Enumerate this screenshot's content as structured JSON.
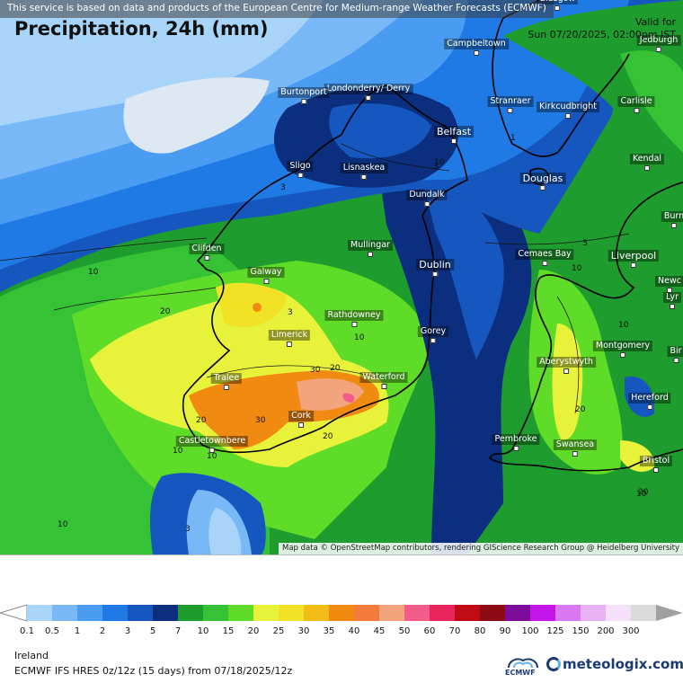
{
  "attribution_top": "This service is based on data and products of the European Centre for Medium-range Weather Forecasts (ECMWF)",
  "attribution_map": "Map data © OpenStreetMap contributors, rendering GIScience Research Group @ Heidelberg University",
  "title": "Precipitation, 24h (mm)",
  "valid_label": "Valid for",
  "valid_time": "Sun 07/20/2025, 02:00pm IST",
  "region": "Ireland",
  "model": "ECMWF IFS HRES 0z/12z (15 days) from 07/18/2025/12z",
  "ecmwf_logo_text": "ECMWF",
  "brand": "meteologix.com",
  "cities": [
    {
      "name": "Glasgow",
      "big": false
    },
    {
      "name": "Jedburgh",
      "big": false
    },
    {
      "name": "Campbeltown",
      "big": false
    },
    {
      "name": "Londonderry/ Derry",
      "big": false
    },
    {
      "name": "Burtonport",
      "big": false
    },
    {
      "name": "Stranraer",
      "big": false
    },
    {
      "name": "Kirkcudbright",
      "big": false
    },
    {
      "name": "Carlisle",
      "big": false
    },
    {
      "name": "Belfast",
      "big": true
    },
    {
      "name": "Kendal",
      "big": false
    },
    {
      "name": "Sligo",
      "big": false
    },
    {
      "name": "Lisnaskea",
      "big": false
    },
    {
      "name": "Douglas",
      "big": true
    },
    {
      "name": "Dundalk",
      "big": false
    },
    {
      "name": "Burn",
      "big": false
    },
    {
      "name": "Mullingar",
      "big": false
    },
    {
      "name": "Clifden",
      "big": false
    },
    {
      "name": "Cemaes Bay",
      "big": false
    },
    {
      "name": "Liverpool",
      "big": true
    },
    {
      "name": "Dublin",
      "big": true
    },
    {
      "name": "Galway",
      "big": false
    },
    {
      "name": "Newc",
      "big": false
    },
    {
      "name": "Lyr",
      "big": false
    },
    {
      "name": "Rathdowney",
      "big": false
    },
    {
      "name": "Gorey",
      "big": false
    },
    {
      "name": "Limerick",
      "big": false
    },
    {
      "name": "Montgomery",
      "big": false
    },
    {
      "name": "Bir",
      "big": false
    },
    {
      "name": "Aberystwyth",
      "big": false
    },
    {
      "name": "Tralee",
      "big": false
    },
    {
      "name": "Waterford",
      "big": false
    },
    {
      "name": "Hereford",
      "big": false
    },
    {
      "name": "Cork",
      "big": false
    },
    {
      "name": "Pembroke",
      "big": false
    },
    {
      "name": "Swansea",
      "big": false
    },
    {
      "name": "Castletownbere",
      "big": false
    },
    {
      "name": "Bristol",
      "big": false
    }
  ],
  "contour_labels": [
    "3",
    "3",
    "1",
    "3",
    "3",
    "10",
    "20",
    "10",
    "10",
    "10",
    "20",
    "30",
    "30",
    "20",
    "20",
    "20",
    "10",
    "10",
    "10",
    "10",
    "3",
    "20",
    "10"
  ],
  "legend": {
    "thresholds": [
      "0.1",
      "0.5",
      "1",
      "2",
      "3",
      "5",
      "7",
      "10",
      "15",
      "20",
      "25",
      "30",
      "35",
      "40",
      "45",
      "50",
      "60",
      "70",
      "80",
      "90",
      "100",
      "125",
      "150",
      "200",
      "300"
    ],
    "colors": [
      "#a8d4fa",
      "#78b8f7",
      "#4a9bf2",
      "#1f7ae6",
      "#1557bf",
      "#0b2f7e",
      "#1e9c2e",
      "#35c234",
      "#5fdc28",
      "#e8f23a",
      "#f2e226",
      "#f2bc16",
      "#f08a10",
      "#f27a3a",
      "#f4a47c",
      "#f25c8a",
      "#e8255a",
      "#c00a14",
      "#8c0a14",
      "#7e0c9a",
      "#c416e8",
      "#d878f2",
      "#e8b0f5",
      "#f4e0f8",
      "#dadada",
      "#a0a0a0"
    ]
  },
  "colors": {
    "light_blue": "#a8d4fa",
    "pale_sky": "#dde8f3",
    "mid_blue": "#4a9bf2",
    "blue": "#1f7ae6",
    "navy": "#0b2f7e",
    "dark_green": "#1e9c2e",
    "green": "#35c234",
    "lime": "#5fdc28",
    "yellow": "#e8f23a",
    "orange": "#f08a10",
    "salmon": "#f4a47c",
    "pink": "#f25c8a"
  }
}
